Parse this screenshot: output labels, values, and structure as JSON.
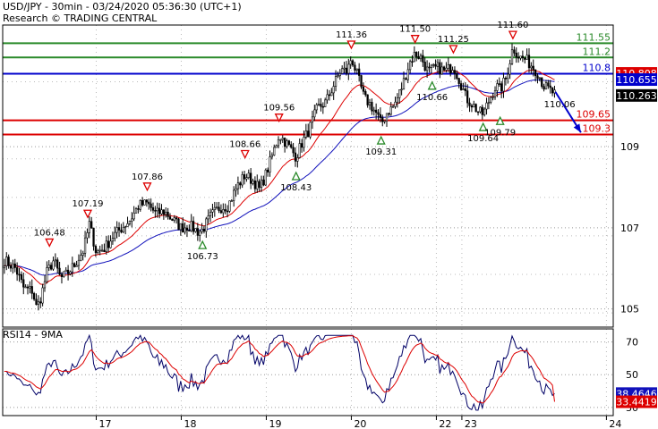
{
  "header": {
    "title": "USD/JPY - 30min - 03/24/2020 05:36:30 (UTC+1)",
    "subtitle": "Research © TRADING CENTRAL"
  },
  "colors": {
    "green": "#2a8a2a",
    "blue": "#0000cc",
    "red": "#dd0000",
    "candle_up": "#ffffff",
    "candle_down": "#000000",
    "grid": "#999999",
    "ma_fast": "#dd0000",
    "ma_slow": "#1111bb",
    "rsi": "#000066",
    "rsi_ma": "#dd0000"
  },
  "chart_data": [
    {
      "type": "candlestick",
      "panel": "price",
      "ylim": [
        104.55,
        112.0
      ],
      "y_ticks": [
        "105",
        "107",
        "109"
      ],
      "x_ticks": [
        "17",
        "18",
        "19",
        "20",
        "22",
        "23",
        "24"
      ],
      "levels": [
        {
          "label": "111.55",
          "value": 111.55,
          "color": "green"
        },
        {
          "label": "111.2",
          "value": 111.2,
          "color": "green"
        },
        {
          "label": "110.8",
          "value": 110.8,
          "color": "blue"
        },
        {
          "label": "109.65",
          "value": 109.65,
          "color": "red"
        },
        {
          "label": "109.3",
          "value": 109.3,
          "color": "red"
        }
      ],
      "price_boxes": [
        {
          "label": "110.808",
          "value": 110.808,
          "color": "#dd0000"
        },
        {
          "label": "110.655",
          "value": 110.655,
          "color": "#0000cc"
        },
        {
          "label": "110.263",
          "value": 110.263,
          "color": "#000000"
        }
      ],
      "annotations": [
        {
          "label": "106.48",
          "value": 106.48,
          "kind": "high",
          "day": 16.15
        },
        {
          "label": "107.19",
          "value": 107.19,
          "kind": "high",
          "day": 16.6
        },
        {
          "label": "107.86",
          "value": 107.86,
          "kind": "high",
          "day": 17.3
        },
        {
          "label": "106.73",
          "value": 106.73,
          "kind": "low",
          "day": 17.95
        },
        {
          "label": "108.66",
          "value": 108.66,
          "kind": "high",
          "day": 18.45
        },
        {
          "label": "109.56",
          "value": 109.56,
          "kind": "high",
          "day": 18.85
        },
        {
          "label": "108.43",
          "value": 108.43,
          "kind": "low",
          "day": 19.05
        },
        {
          "label": "111.36",
          "value": 111.36,
          "kind": "high",
          "day": 19.7
        },
        {
          "label": "109.31",
          "value": 109.31,
          "kind": "low",
          "day": 20.05
        },
        {
          "label": "111.50",
          "value": 111.5,
          "kind": "high",
          "day": 20.45
        },
        {
          "label": "110.66",
          "value": 110.66,
          "kind": "low",
          "day": 20.65
        },
        {
          "label": "111.25",
          "value": 111.25,
          "kind": "high",
          "day": 20.9
        },
        {
          "label": "109.64",
          "value": 109.64,
          "kind": "low",
          "day": 21.25
        },
        {
          "label": "109.79",
          "value": 109.79,
          "kind": "low",
          "day": 21.45
        },
        {
          "label": "111.60",
          "value": 111.6,
          "kind": "high",
          "day": 21.6
        },
        {
          "label": "110.06",
          "value": 110.06,
          "kind": "text",
          "day": 22.15
        }
      ],
      "projection": [
        {
          "day": 22.1,
          "value": 110.35
        },
        {
          "day": 22.4,
          "value": 109.35
        }
      ],
      "x_range_days": [
        15.6,
        22.78
      ],
      "tick_days": [
        16.7,
        17.7,
        18.7,
        19.7,
        20.7,
        21.0,
        22.7
      ],
      "path": [
        [
          15.62,
          106.2
        ],
        [
          15.75,
          106.0
        ],
        [
          15.85,
          105.5
        ],
        [
          15.95,
          105.45
        ],
        [
          16.0,
          105.0
        ],
        [
          16.05,
          105.3
        ],
        [
          16.12,
          105.9
        ],
        [
          16.2,
          106.2
        ],
        [
          16.28,
          105.75
        ],
        [
          16.35,
          105.85
        ],
        [
          16.45,
          106.1
        ],
        [
          16.55,
          106.45
        ],
        [
          16.62,
          107.1
        ],
        [
          16.7,
          106.4
        ],
        [
          16.8,
          106.5
        ],
        [
          16.9,
          106.8
        ],
        [
          17.0,
          107.0
        ],
        [
          17.1,
          107.2
        ],
        [
          17.2,
          107.55
        ],
        [
          17.3,
          107.6
        ],
        [
          17.4,
          107.35
        ],
        [
          17.5,
          107.4
        ],
        [
          17.6,
          107.2
        ],
        [
          17.7,
          107.0
        ],
        [
          17.8,
          107.05
        ],
        [
          17.9,
          106.9
        ],
        [
          17.95,
          106.95
        ],
        [
          18.05,
          107.3
        ],
        [
          18.15,
          107.5
        ],
        [
          18.25,
          107.55
        ],
        [
          18.35,
          108.0
        ],
        [
          18.45,
          108.3
        ],
        [
          18.55,
          108.15
        ],
        [
          18.62,
          107.95
        ],
        [
          18.7,
          108.35
        ],
        [
          18.78,
          108.85
        ],
        [
          18.85,
          109.3
        ],
        [
          18.95,
          109.05
        ],
        [
          19.05,
          108.75
        ],
        [
          19.12,
          109.1
        ],
        [
          19.2,
          109.4
        ],
        [
          19.3,
          109.95
        ],
        [
          19.4,
          110.1
        ],
        [
          19.5,
          110.55
        ],
        [
          19.58,
          110.9
        ],
        [
          19.65,
          110.85
        ],
        [
          19.7,
          111.2
        ],
        [
          19.78,
          110.7
        ],
        [
          19.85,
          110.2
        ],
        [
          19.92,
          110.05
        ],
        [
          20.0,
          109.8
        ],
        [
          20.05,
          109.55
        ],
        [
          20.12,
          109.85
        ],
        [
          20.2,
          110.0
        ],
        [
          20.3,
          110.5
        ],
        [
          20.38,
          111.05
        ],
        [
          20.45,
          111.3
        ],
        [
          20.52,
          111.2
        ],
        [
          20.6,
          110.85
        ],
        [
          20.65,
          110.9
        ],
        [
          20.72,
          110.95
        ],
        [
          20.8,
          110.85
        ],
        [
          20.9,
          111.0
        ],
        [
          20.98,
          110.6
        ],
        [
          21.05,
          110.2
        ],
        [
          21.12,
          110.05
        ],
        [
          21.2,
          109.85
        ],
        [
          21.25,
          109.8
        ],
        [
          21.32,
          110.15
        ],
        [
          21.4,
          110.5
        ],
        [
          21.45,
          110.4
        ],
        [
          21.52,
          110.7
        ],
        [
          21.6,
          111.45
        ],
        [
          21.68,
          111.2
        ],
        [
          21.75,
          111.15
        ],
        [
          21.82,
          111.0
        ],
        [
          21.9,
          110.8
        ],
        [
          21.96,
          110.5
        ],
        [
          22.03,
          110.4
        ],
        [
          22.09,
          110.3
        ]
      ]
    },
    {
      "type": "line",
      "panel": "rsi",
      "title": "RSI14 - 9MA",
      "ylim": [
        25,
        78
      ],
      "y_ticks": [
        "70",
        "50",
        "30"
      ],
      "last_values": [
        {
          "label": "38.4646",
          "value": 38.4646,
          "color": "#1111bb"
        },
        {
          "label": "33.4419",
          "value": 33.4419,
          "color": "#dd0000"
        }
      ]
    }
  ]
}
